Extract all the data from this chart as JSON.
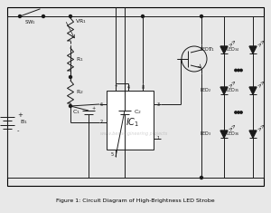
{
  "title": "Figure 1: Circuit Diagram of High-Brightness LED Strobe",
  "bg_color": "#e8e8e8",
  "line_color": "#1a1a1a",
  "fig_width": 3.0,
  "fig_height": 2.35,
  "dpi": 100,
  "watermark": "www.bestengineering projects",
  "caption": "Figure 1: Circuit Diagram of High-Brightness LED Strobe"
}
